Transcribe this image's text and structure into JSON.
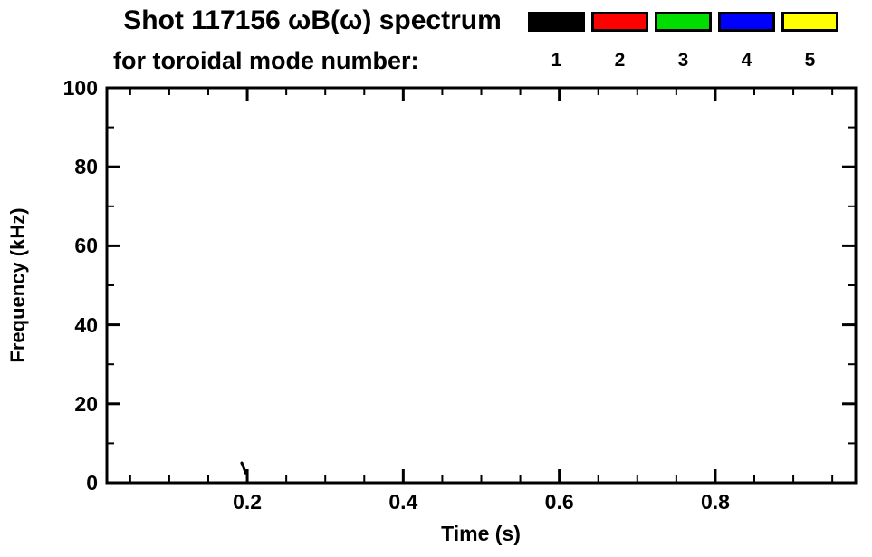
{
  "chart_data": {
    "type": "scatter",
    "title": "Shot 117156 ωB(ω) spectrum",
    "subtitle": "for toroidal mode number:",
    "xlabel": "Time (s)",
    "ylabel": "Frequency (kHz)",
    "xlim": [
      0.02,
      0.98
    ],
    "ylim": [
      0,
      100
    ],
    "grid": false,
    "legend_position": "top-right",
    "x_ticks": [
      {
        "value": 0.2,
        "label": "0.2"
      },
      {
        "value": 0.4,
        "label": "0.4"
      },
      {
        "value": 0.6,
        "label": "0.6"
      },
      {
        "value": 0.8,
        "label": "0.8"
      }
    ],
    "x_minor_step": 0.05,
    "y_ticks": [
      {
        "value": 0,
        "label": "0"
      },
      {
        "value": 20,
        "label": "20"
      },
      {
        "value": 40,
        "label": "40"
      },
      {
        "value": 60,
        "label": "60"
      },
      {
        "value": 80,
        "label": "80"
      },
      {
        "value": 100,
        "label": "100"
      }
    ],
    "y_minor_step": 10,
    "legend": [
      {
        "label": "1",
        "color": "#000000"
      },
      {
        "label": "2",
        "color": "#ff0000"
      },
      {
        "label": "3",
        "color": "#00dd00"
      },
      {
        "label": "4",
        "color": "#0000ff"
      },
      {
        "label": "5",
        "color": "#ffff00"
      }
    ],
    "series": [
      {
        "name": "toroidal mode n=1",
        "color": "#000000",
        "points": [
          {
            "x": 0.193,
            "y": 5.0
          },
          {
            "x": 0.198,
            "y": 2.5
          }
        ]
      }
    ]
  }
}
